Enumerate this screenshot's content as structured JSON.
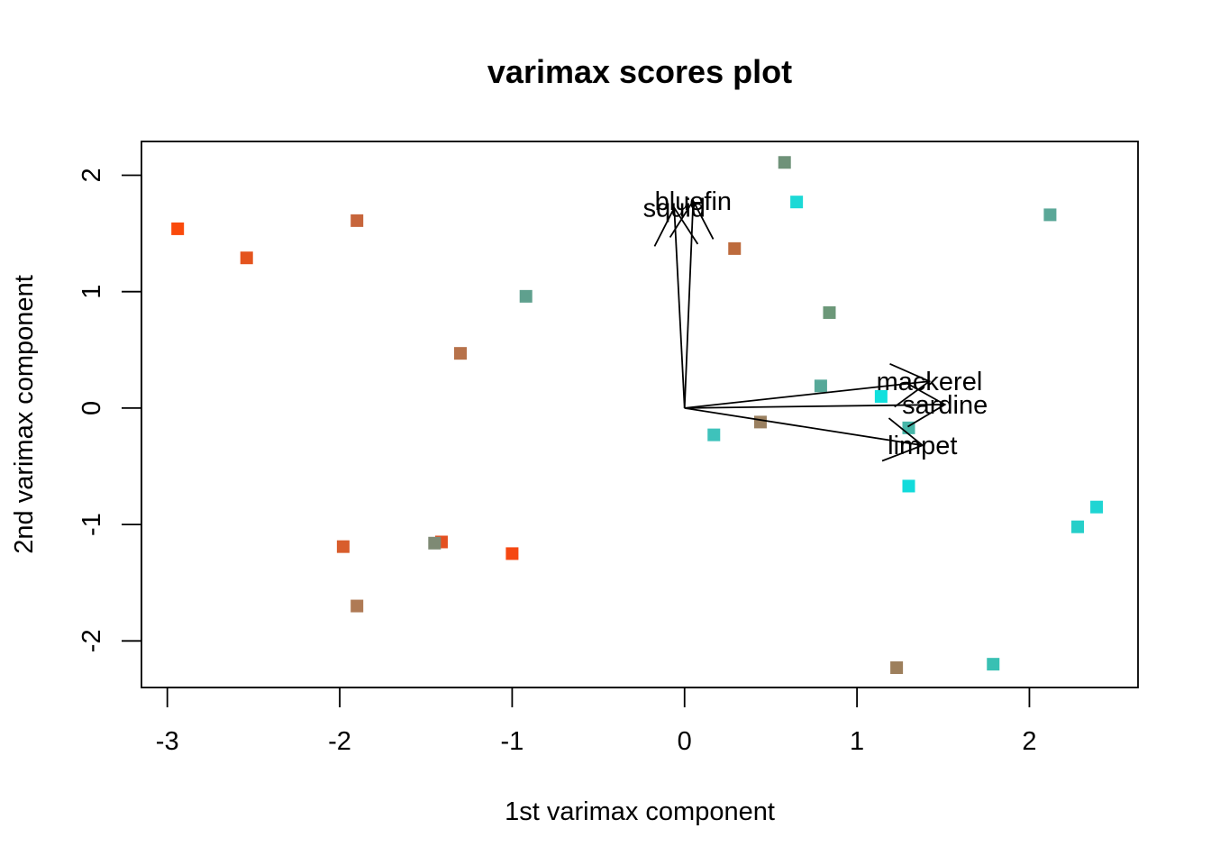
{
  "chart_data": {
    "type": "scatter",
    "title": "varimax scores plot",
    "xlabel": "1st varimax component",
    "ylabel": "2nd varimax component",
    "xlim": [
      -3.15,
      2.63
    ],
    "ylim": [
      -2.4,
      2.29
    ],
    "xticks": [
      -3,
      -2,
      -1,
      0,
      1,
      2
    ],
    "yticks": [
      -2,
      -1,
      0,
      1,
      2
    ],
    "xtick_labels": [
      "-3",
      "-2",
      "-1",
      "0",
      "1",
      "2"
    ],
    "ytick_labels": [
      "-2",
      "-1",
      "0",
      "1",
      "2"
    ],
    "grid": false,
    "legend": "none",
    "points": [
      {
        "x": -2.94,
        "y": 1.54,
        "color": "#fa4a0c"
      },
      {
        "x": -2.54,
        "y": 1.29,
        "color": "#e4541e"
      },
      {
        "x": -1.9,
        "y": 1.61,
        "color": "#c7653b"
      },
      {
        "x": -1.3,
        "y": 0.47,
        "color": "#b7724a"
      },
      {
        "x": -0.92,
        "y": 0.96,
        "color": "#5fa08e"
      },
      {
        "x": -1.98,
        "y": -1.19,
        "color": "#d85d2c"
      },
      {
        "x": -1.41,
        "y": -1.15,
        "color": "#e45020"
      },
      {
        "x": -1.45,
        "y": -1.16,
        "color": "#7e8a74"
      },
      {
        "x": -1.0,
        "y": -1.25,
        "color": "#f54812"
      },
      {
        "x": -1.9,
        "y": -1.7,
        "color": "#af7a55"
      },
      {
        "x": 0.58,
        "y": 2.11,
        "color": "#6f9279"
      },
      {
        "x": 0.65,
        "y": 1.77,
        "color": "#1cd9d6"
      },
      {
        "x": 0.29,
        "y": 1.37,
        "color": "#bd6b3d"
      },
      {
        "x": 0.84,
        "y": 0.82,
        "color": "#6c9879"
      },
      {
        "x": 0.79,
        "y": 0.19,
        "color": "#57a999"
      },
      {
        "x": 1.14,
        "y": 0.1,
        "color": "#10e0dd"
      },
      {
        "x": 0.44,
        "y": -0.12,
        "color": "#9a8060"
      },
      {
        "x": 0.17,
        "y": -0.23,
        "color": "#3ec2bb"
      },
      {
        "x": 1.3,
        "y": -0.17,
        "color": "#47b6a8"
      },
      {
        "x": 1.3,
        "y": -0.67,
        "color": "#12dbdb"
      },
      {
        "x": 2.12,
        "y": 1.66,
        "color": "#5aa797"
      },
      {
        "x": 2.39,
        "y": -0.85,
        "color": "#1fd5d3"
      },
      {
        "x": 2.28,
        "y": -1.02,
        "color": "#26cfc9"
      },
      {
        "x": 1.79,
        "y": -2.2,
        "color": "#39c0b3"
      },
      {
        "x": 1.23,
        "y": -2.23,
        "color": "#9d7f5c"
      }
    ],
    "loadings": [
      {
        "label": "bluefin",
        "x": 0.05,
        "y": 1.78
      },
      {
        "label": "squid",
        "x": -0.06,
        "y": 1.72
      },
      {
        "label": "mackerel",
        "x": 1.42,
        "y": 0.23
      },
      {
        "label": "sardine",
        "x": 1.51,
        "y": 0.03
      },
      {
        "label": "limpet",
        "x": 1.38,
        "y": -0.32
      }
    ]
  }
}
